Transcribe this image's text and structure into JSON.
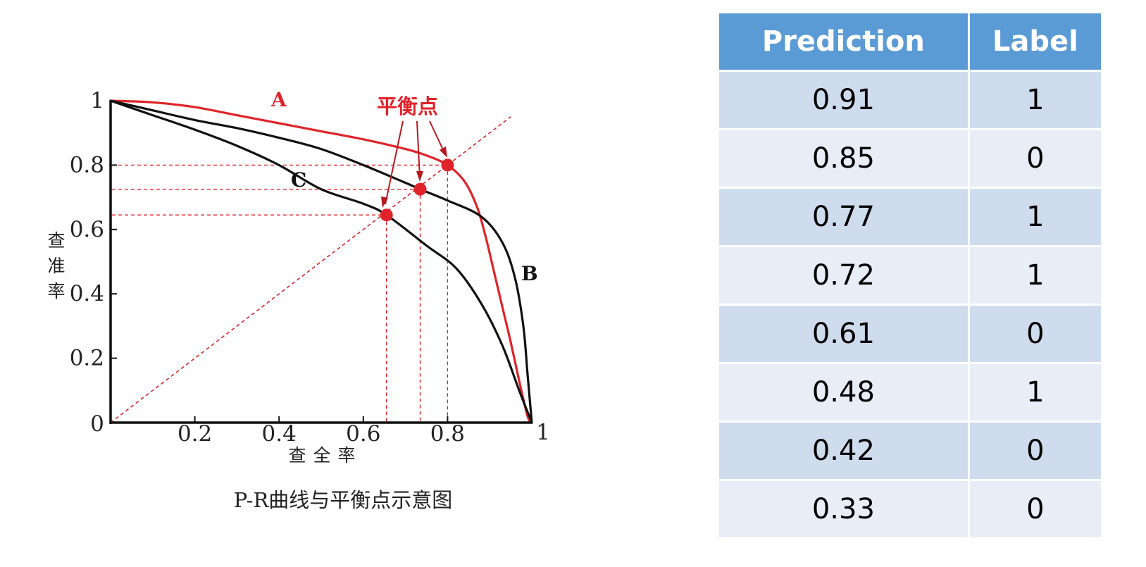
{
  "chart_data": [
    {
      "type": "line",
      "title": "P-R曲线与平衡点示意图",
      "xlabel": "查全率",
      "ylabel": "查准率",
      "xlim": [
        0,
        1
      ],
      "ylim": [
        0,
        1
      ],
      "x_ticks": [
        "0",
        "0.2",
        "0.4",
        "0.6",
        "0.8",
        "1"
      ],
      "y_ticks": [
        "0",
        "0.2",
        "0.4",
        "0.6",
        "0.8",
        "1"
      ],
      "grid": false,
      "series": [
        {
          "name": "A",
          "color": "#e0232a",
          "points": [
            [
              0,
              1.0
            ],
            [
              0.1,
              0.995
            ],
            [
              0.2,
              0.98
            ],
            [
              0.3,
              0.955
            ],
            [
              0.4,
              0.93
            ],
            [
              0.5,
              0.905
            ],
            [
              0.6,
              0.88
            ],
            [
              0.7,
              0.85
            ],
            [
              0.75,
              0.83
            ],
            [
              0.8,
              0.8
            ],
            [
              0.84,
              0.75
            ],
            [
              0.87,
              0.67
            ],
            [
              0.89,
              0.58
            ],
            [
              0.91,
              0.47
            ],
            [
              0.93,
              0.36
            ],
            [
              0.95,
              0.25
            ],
            [
              0.97,
              0.13
            ],
            [
              0.99,
              0.02
            ],
            [
              1.0,
              0
            ]
          ]
        },
        {
          "name": "B",
          "color": "#111111",
          "points": [
            [
              0,
              1.0
            ],
            [
              0.1,
              0.97
            ],
            [
              0.2,
              0.94
            ],
            [
              0.3,
              0.915
            ],
            [
              0.4,
              0.885
            ],
            [
              0.5,
              0.85
            ],
            [
              0.6,
              0.8
            ],
            [
              0.7,
              0.745
            ],
            [
              0.735,
              0.725
            ],
            [
              0.8,
              0.69
            ],
            [
              0.88,
              0.64
            ],
            [
              0.93,
              0.56
            ],
            [
              0.96,
              0.45
            ],
            [
              0.98,
              0.3
            ],
            [
              0.99,
              0.15
            ],
            [
              1.0,
              0
            ]
          ]
        },
        {
          "name": "C",
          "color": "#111111",
          "points": [
            [
              0,
              1.0
            ],
            [
              0.1,
              0.955
            ],
            [
              0.2,
              0.91
            ],
            [
              0.3,
              0.86
            ],
            [
              0.4,
              0.8
            ],
            [
              0.5,
              0.725
            ],
            [
              0.6,
              0.68
            ],
            [
              0.655,
              0.645
            ],
            [
              0.75,
              0.55
            ],
            [
              0.82,
              0.48
            ],
            [
              0.88,
              0.37
            ],
            [
              0.93,
              0.24
            ],
            [
              0.97,
              0.1
            ],
            [
              1.0,
              0
            ]
          ]
        }
      ],
      "break_even_points": [
        {
          "curve": "A",
          "x": 0.8,
          "y": 0.8
        },
        {
          "curve": "B",
          "x": 0.735,
          "y": 0.725
        },
        {
          "curve": "C",
          "x": 0.655,
          "y": 0.645
        }
      ],
      "annotation": "平衡点"
    },
    {
      "type": "table",
      "columns": [
        "Prediction",
        "Label"
      ],
      "rows": [
        [
          "0.91",
          "1"
        ],
        [
          "0.85",
          "0"
        ],
        [
          "0.77",
          "1"
        ],
        [
          "0.72",
          "1"
        ],
        [
          "0.61",
          "0"
        ],
        [
          "0.48",
          "1"
        ],
        [
          "0.42",
          "0"
        ],
        [
          "0.33",
          "0"
        ]
      ]
    }
  ]
}
